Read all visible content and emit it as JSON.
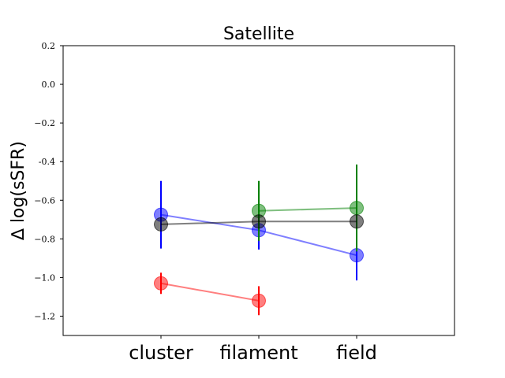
{
  "chart_data": {
    "type": "scatter",
    "title": "Satellite",
    "xlabel": "",
    "ylabel": "∆ log(sSFR)",
    "categories": [
      "cluster",
      "filament",
      "field"
    ],
    "ylim": [
      -1.3,
      0.2
    ],
    "yticks": [
      0.2,
      0.0,
      -0.2,
      -0.4,
      -0.6,
      -0.8,
      -1.0,
      -1.2
    ],
    "ytick_labels": [
      "0.2",
      "0.0",
      "−0.2",
      "-0.4",
      "−0.6",
      "−0.8",
      "−1.0",
      "−1.2"
    ],
    "grid": false,
    "series": [
      {
        "color": "#0000ff",
        "values": [
          -0.675,
          -0.755,
          -0.885
        ],
        "err_low": [
          0.175,
          0.1,
          0.13
        ],
        "err_high": [
          0.175,
          0.1,
          0.13
        ]
      },
      {
        "color": "#008000",
        "values": [
          null,
          -0.655,
          -0.64
        ],
        "err_low": [
          null,
          0.155,
          0.225
        ],
        "err_high": [
          null,
          0.155,
          0.225
        ]
      },
      {
        "color": "#000000",
        "values": [
          -0.725,
          -0.71,
          -0.71
        ],
        "err_low": [
          0,
          0,
          0
        ],
        "err_high": [
          0,
          0,
          0
        ]
      },
      {
        "color": "#ff0000",
        "values": [
          -1.03,
          -1.12,
          null
        ],
        "err_low": [
          0.055,
          0.075,
          null
        ],
        "err_high": [
          0.055,
          0.075,
          null
        ]
      }
    ]
  }
}
